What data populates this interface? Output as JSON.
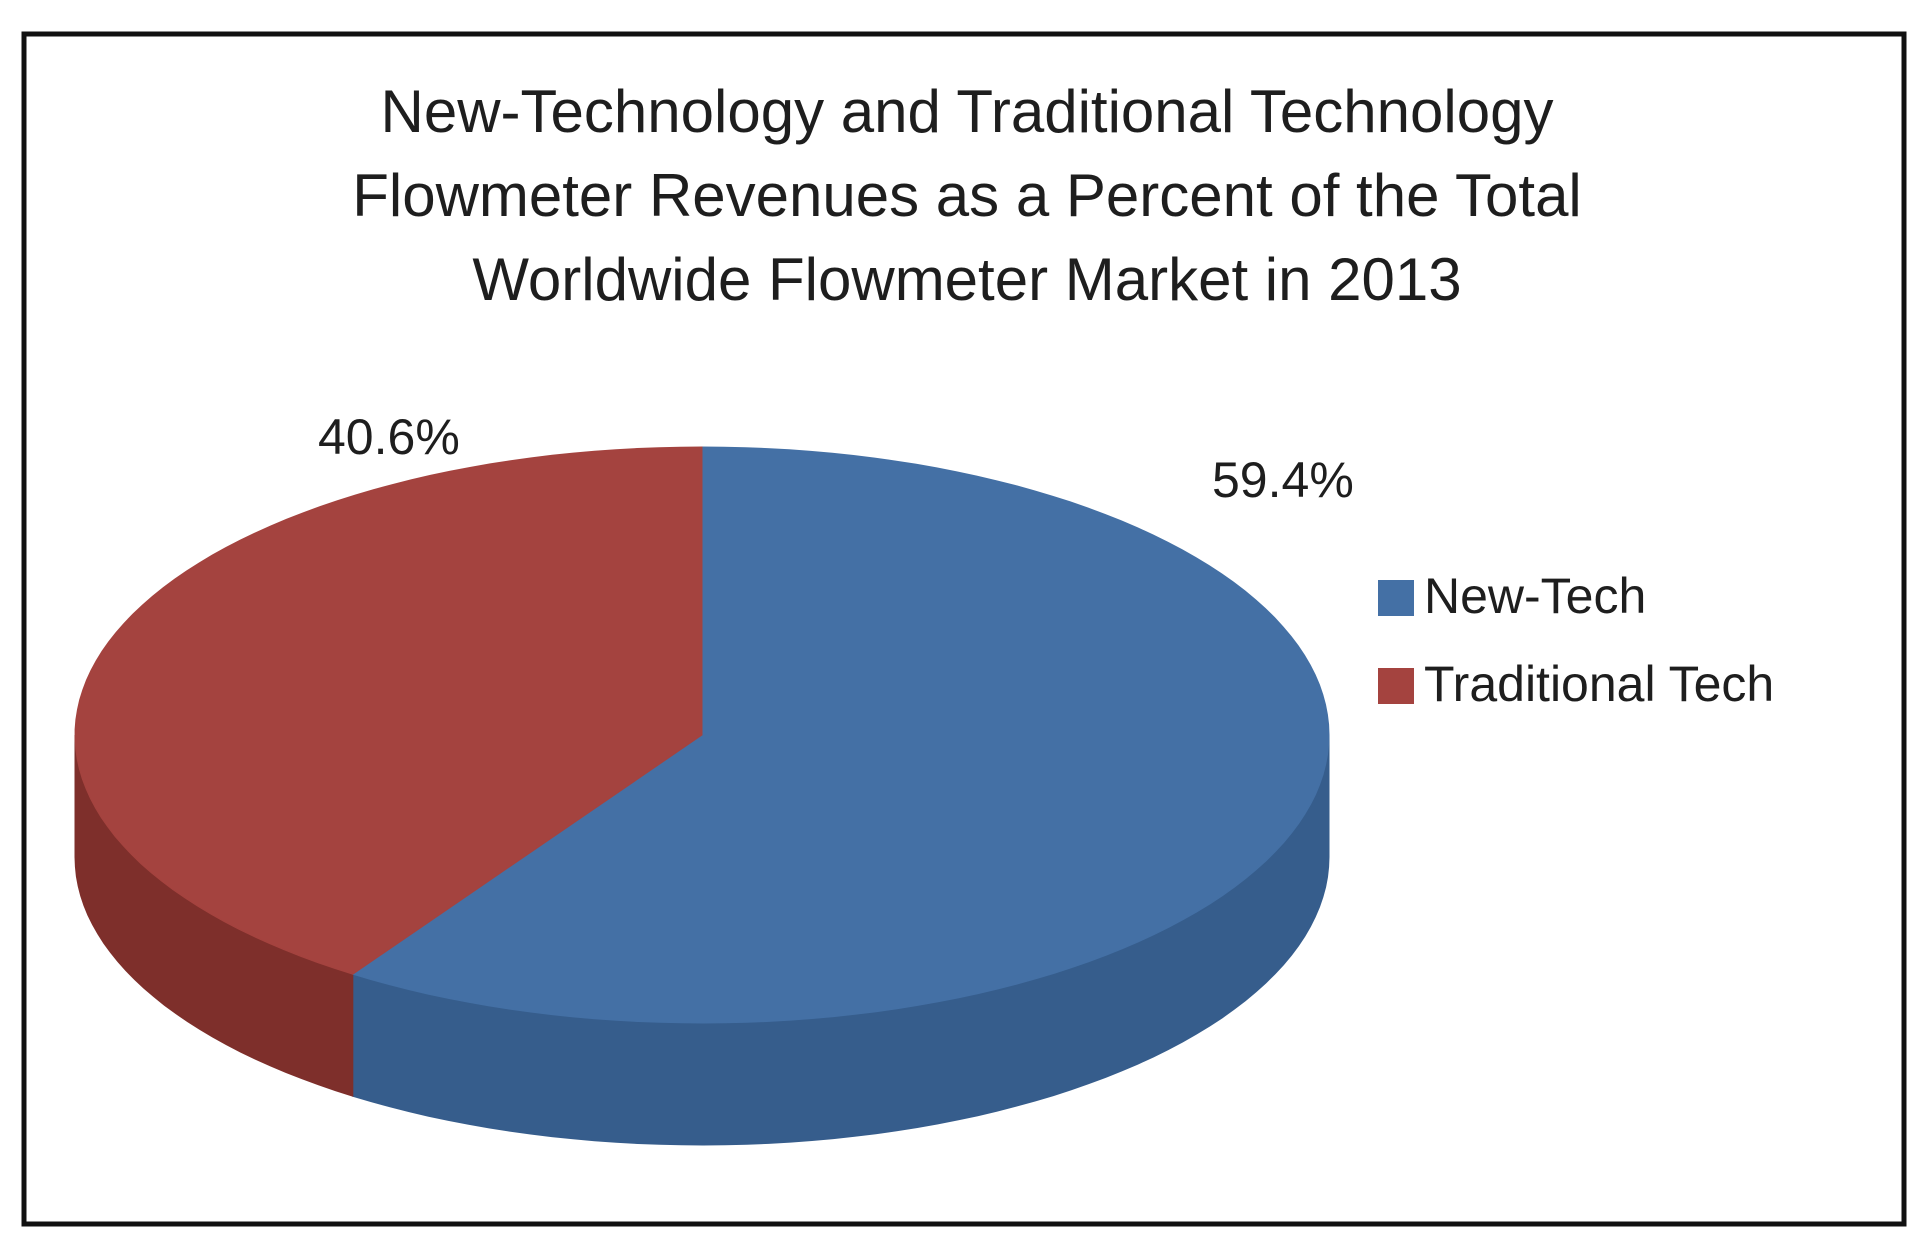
{
  "chart_data": {
    "type": "pie",
    "title": [
      "New-Technology and Traditional Technology",
      "Flowmeter Revenues as a Percent of the Total",
      "Worldwide Flowmeter Market in 2013"
    ],
    "categories": [
      "New-Tech",
      "Traditional Tech"
    ],
    "values": [
      59.4,
      40.6
    ],
    "value_labels": [
      "59.4%",
      "40.6%"
    ],
    "colors": [
      "#4470a5",
      "#a4433f"
    ],
    "side_colors": [
      "#365d8c",
      "#7e2f2b"
    ],
    "legend": "right"
  }
}
